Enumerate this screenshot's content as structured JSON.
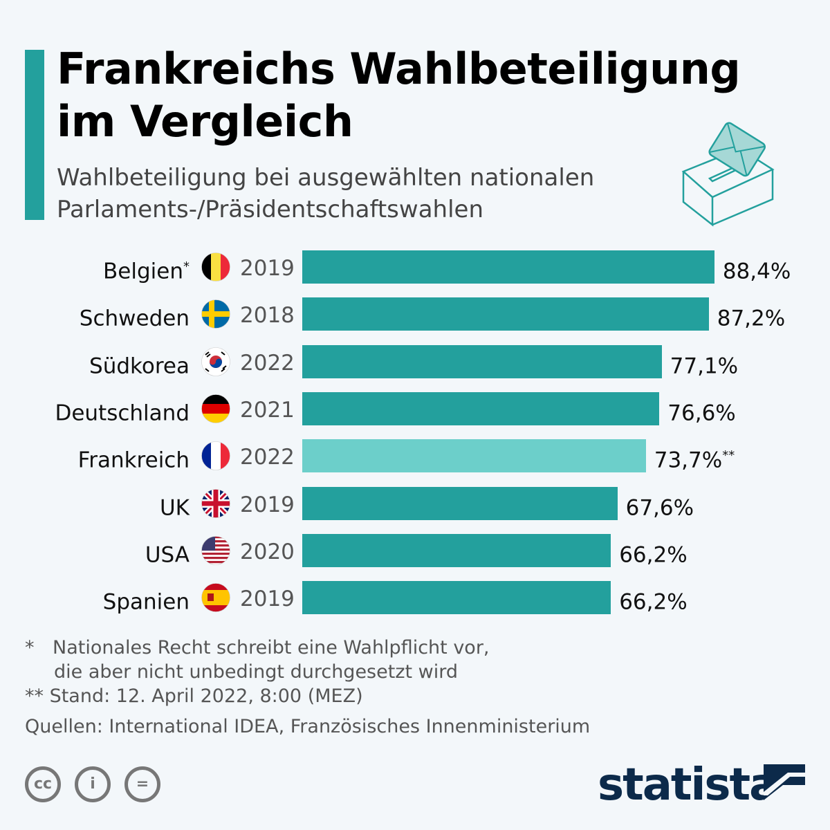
{
  "header": {
    "title_line1": "Frankreichs Wahlbeteiligung",
    "title_line2": "im Vergleich",
    "subtitle_line1": "Wahlbeteiligung bei ausgewählten nationalen",
    "subtitle_line2": "Parlaments-/Präsidentschaftswahlen",
    "icon": "ballot-box-icon"
  },
  "chart_data": {
    "type": "bar",
    "orientation": "horizontal",
    "unit": "%",
    "xlim": [
      0,
      100
    ],
    "grid": false,
    "categories": [
      "Belgien",
      "Schweden",
      "Südkorea",
      "Deutschland",
      "Frankreich",
      "UK",
      "USA",
      "Spanien"
    ],
    "category_marks": [
      "*",
      "",
      "",
      "",
      "",
      "",
      "",
      ""
    ],
    "years": [
      "2019",
      "2018",
      "2022",
      "2021",
      "2022",
      "2019",
      "2020",
      "2019"
    ],
    "flags": [
      "belgium-flag-icon",
      "sweden-flag-icon",
      "south-korea-flag-icon",
      "germany-flag-icon",
      "france-flag-icon",
      "uk-flag-icon",
      "usa-flag-icon",
      "spain-flag-icon"
    ],
    "values": [
      88.4,
      87.2,
      77.1,
      76.6,
      73.7,
      67.6,
      66.2,
      66.2
    ],
    "labels": [
      "88,4%",
      "87,2%",
      "77,1%",
      "76,6%",
      "73,7%",
      "67,6%",
      "66,2%",
      "66,2%"
    ],
    "label_marks": [
      "",
      "",
      "",
      "",
      "**",
      "",
      "",
      ""
    ],
    "colors": [
      "#23a09d",
      "#23a09d",
      "#23a09d",
      "#23a09d",
      "#6ccfca",
      "#23a09d",
      "#23a09d",
      "#23a09d"
    ]
  },
  "footer": {
    "note1_mark": "*",
    "note1_line1": "Nationales Recht schreibt eine Wahlpflicht vor,",
    "note1_line2": "die aber nicht unbedingt durchgesetzt wird",
    "note2": "** Stand: 12. April 2022, 8:00 (MEZ)",
    "sources": "Quellen: International IDEA, Französisches Innenministerium",
    "license_icons": [
      "cc-icon",
      "by-icon",
      "nd-icon"
    ],
    "license_glyphs": [
      "cc",
      "i",
      "="
    ],
    "brand": "statista"
  }
}
